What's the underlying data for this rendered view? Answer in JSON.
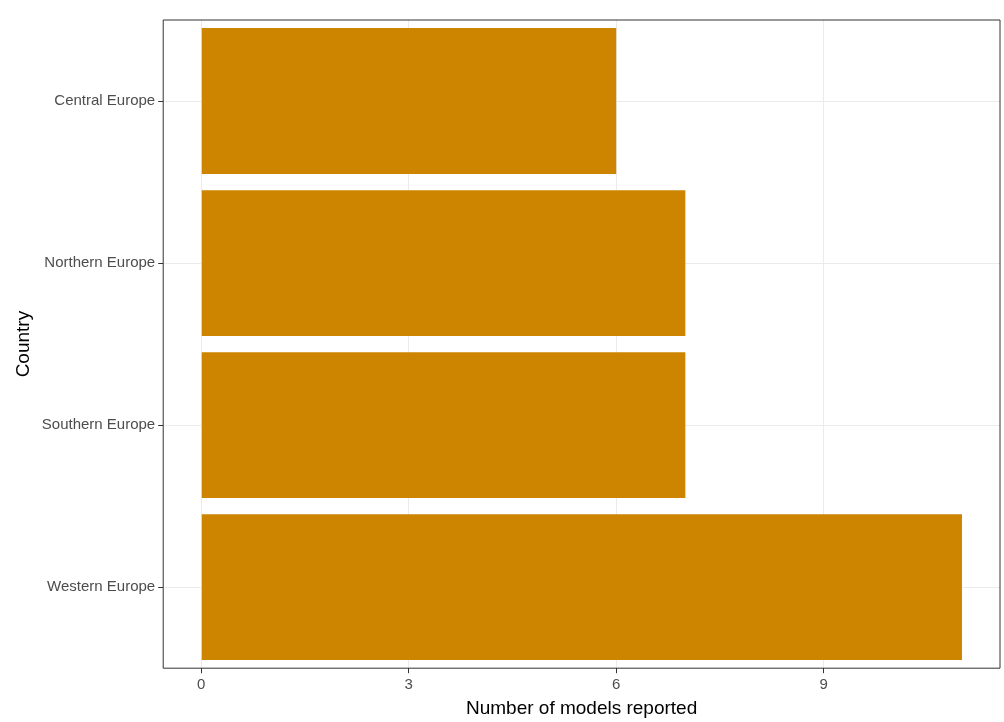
{
  "chart_data": {
    "type": "bar",
    "orientation": "horizontal",
    "xlabel": "Number of models reported",
    "ylabel": "Country",
    "categories": [
      "Central Europe",
      "Northern Europe",
      "Southern Europe",
      "Western Europe"
    ],
    "values": [
      6,
      7,
      7,
      11
    ],
    "color": "#cd8500",
    "xlim": [
      -0.55,
      11.55
    ],
    "xticks": [
      0,
      3,
      6,
      9
    ],
    "grid": true,
    "legend": false
  }
}
